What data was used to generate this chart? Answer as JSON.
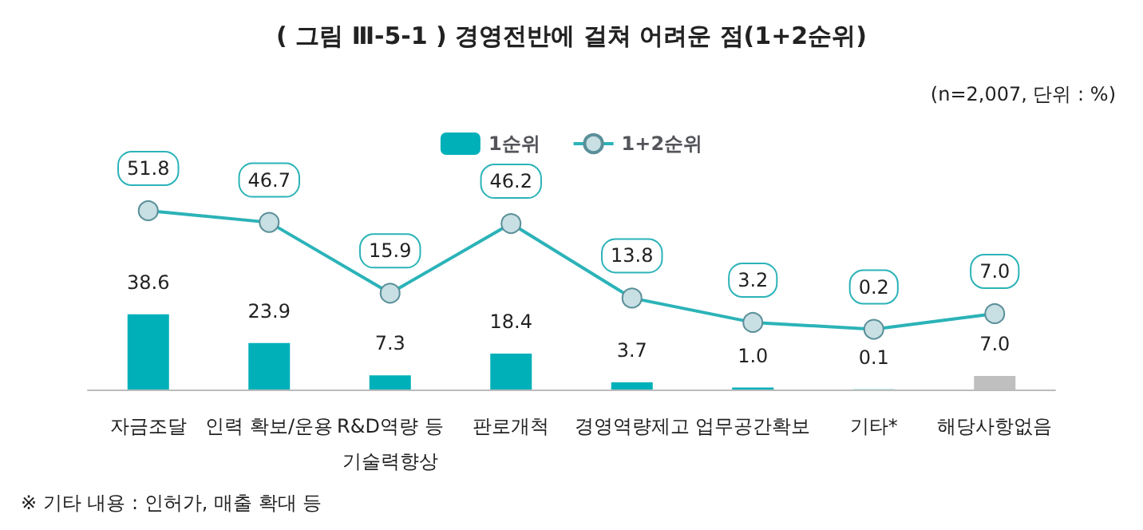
{
  "chart_data": {
    "type": "bar",
    "title": "( 그림 Ⅲ-5-1 ) 경영전반에 걸쳐 어려운 점(1+2순위)",
    "subtitle": "(n=2,007, 단위 : %)",
    "categories": [
      "자금조달",
      "인력 확보/운용",
      "R&D역량 등\n기술력향상",
      "판로개척",
      "경영역량제고",
      "업무공간확보",
      "기타*",
      "해당사항없음"
    ],
    "series": [
      {
        "name": "1순위",
        "value_labels": [
          "38.6",
          "23.9",
          "7.3",
          "18.4",
          "3.7",
          "1.0",
          "0.1",
          "7.0"
        ],
        "colors": [
          "#00b0b9",
          "#00b0b9",
          "#00b0b9",
          "#00b0b9",
          "#00b0b9",
          "#00b0b9",
          "#00b0b9",
          "#bfbfbf"
        ],
        "values": [
          38.6,
          23.9,
          7.3,
          18.4,
          3.7,
          1.0,
          0.1,
          7.0
        ]
      },
      {
        "name": "1+2순위",
        "type": "line",
        "axis": "y2",
        "color": "#2bb3b8",
        "value_labels": [
          "51.8",
          "46.7",
          "15.9",
          "46.2",
          "13.8",
          "3.2",
          "0.2",
          "7.0"
        ],
        "values": [
          51.8,
          46.7,
          15.9,
          46.2,
          13.8,
          3.2,
          0.2,
          7.0
        ]
      }
    ],
    "ylim": [
      0,
      118
    ],
    "y2lim": [
      -26,
      74
    ],
    "tick_labels": "x",
    "legend": "top",
    "grid": false,
    "marker": "circle",
    "line_style": "solid",
    "annotations": [
      "※ 기타 내용 : 인허가, 매출 확대 등"
    ]
  }
}
